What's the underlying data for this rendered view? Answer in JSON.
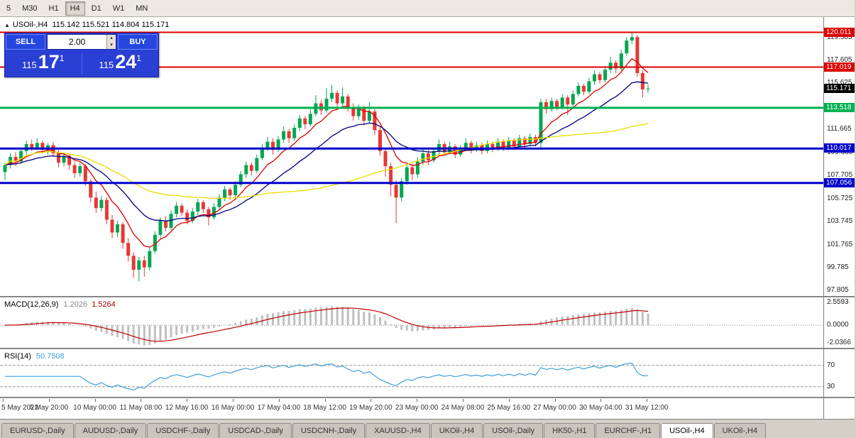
{
  "toolbar": {
    "timeframes": [
      "5",
      "M30",
      "H1",
      "H4",
      "D1",
      "W1",
      "MN"
    ],
    "active_timeframe": "H4"
  },
  "chart": {
    "header": {
      "symbol_tf": "USOil-,H4",
      "ohlc": "115.142 115.521 114.804 115.171"
    },
    "trade_panel": {
      "sell_label": "SELL",
      "buy_label": "BUY",
      "volume": "2.00",
      "sell_price": {
        "prefix": "115",
        "big": "17",
        "sup": "1"
      },
      "buy_price": {
        "prefix": "115",
        "big": "24",
        "sup": "1"
      }
    },
    "price_levels": [
      {
        "label": "120.011",
        "value": 120.011,
        "color": "#dd0000",
        "line_width": 2
      },
      {
        "label": "117.019",
        "value": 117.019,
        "color": "#dd0000",
        "line_width": 2
      },
      {
        "label": "115.171",
        "value": 115.171,
        "color": "#000000",
        "line_width": 0,
        "current_price": true
      },
      {
        "label": "113.518",
        "value": 113.518,
        "color": "#00b050",
        "line_width": 3
      },
      {
        "label": "110.017",
        "value": 110.017,
        "color": "#0000cc",
        "line_width": 3
      },
      {
        "label": "107.056",
        "value": 107.056,
        "color": "#0000cc",
        "line_width": 3
      }
    ],
    "y_axis_labels": [
      "119.585",
      "117.605",
      "115.625",
      "113.645",
      "111.665",
      "109.685",
      "107.705",
      "105.725",
      "103.745",
      "101.765",
      "99.785",
      "97.805"
    ],
    "x_axis_labels": [
      "5 May 2022",
      "6 May 20:00",
      "10 May 00:00",
      "11 May 08:00",
      "12 May 16:00",
      "16 May 00:00",
      "17 May 04:00",
      "18 May 12:00",
      "19 May 20:00",
      "23 May 00:00",
      "24 May 08:00",
      "25 May 16:00",
      "27 May 00:00",
      "30 May 04:00",
      "31 May 12:00"
    ]
  },
  "chart_data": {
    "type": "candlestick",
    "title": "USOil-,H4",
    "y_min": 97.4,
    "y_max": 121.2,
    "up_color": "#00a651",
    "down_color": "#e53935",
    "moving_averages": [
      {
        "type": "ema",
        "period": 8,
        "color": "#dd0000"
      },
      {
        "type": "ema",
        "period": 20,
        "color": "#000080"
      },
      {
        "type": "sma",
        "period": 50,
        "color": "#ecdc00"
      }
    ],
    "candles": [
      [
        108.0,
        108.8,
        107.3,
        108.6
      ],
      [
        108.6,
        109.6,
        108.3,
        109.3
      ],
      [
        109.3,
        109.7,
        108.5,
        108.9
      ],
      [
        108.9,
        110.0,
        108.7,
        109.8
      ],
      [
        109.8,
        110.7,
        109.5,
        110.4
      ],
      [
        110.4,
        110.8,
        109.8,
        110.1
      ],
      [
        110.1,
        110.9,
        109.9,
        110.5
      ],
      [
        110.5,
        110.7,
        109.6,
        109.9
      ],
      [
        109.9,
        110.5,
        109.5,
        110.3
      ],
      [
        110.3,
        110.6,
        109.3,
        109.6
      ],
      [
        109.6,
        109.9,
        108.4,
        108.8
      ],
      [
        108.8,
        109.6,
        108.5,
        109.4
      ],
      [
        109.4,
        109.6,
        108.2,
        108.6
      ],
      [
        108.6,
        108.9,
        107.5,
        107.9
      ],
      [
        107.9,
        108.8,
        107.6,
        108.5
      ],
      [
        108.5,
        108.7,
        106.8,
        107.2
      ],
      [
        107.2,
        107.4,
        105.4,
        105.8
      ],
      [
        105.8,
        106.3,
        104.5,
        104.9
      ],
      [
        104.9,
        105.9,
        104.6,
        105.6
      ],
      [
        105.6,
        105.8,
        103.5,
        103.9
      ],
      [
        103.9,
        104.3,
        102.3,
        102.8
      ],
      [
        102.8,
        103.8,
        102.4,
        103.5
      ],
      [
        103.5,
        103.7,
        101.4,
        101.9
      ],
      [
        101.9,
        102.3,
        100.3,
        100.8
      ],
      [
        100.8,
        101.1,
        98.9,
        99.6
      ],
      [
        99.6,
        100.7,
        98.6,
        100.4
      ],
      [
        100.4,
        100.8,
        99.0,
        99.8
      ],
      [
        99.8,
        101.5,
        99.5,
        101.2
      ],
      [
        101.2,
        102.9,
        101.0,
        102.6
      ],
      [
        102.6,
        104.1,
        102.3,
        103.8
      ],
      [
        103.8,
        104.2,
        102.9,
        103.2
      ],
      [
        103.2,
        104.7,
        103.0,
        104.4
      ],
      [
        104.4,
        105.4,
        104.1,
        105.1
      ],
      [
        105.1,
        105.3,
        104.2,
        104.5
      ],
      [
        104.5,
        104.8,
        103.5,
        103.8
      ],
      [
        103.8,
        104.9,
        103.6,
        104.6
      ],
      [
        104.6,
        105.7,
        104.3,
        105.4
      ],
      [
        105.4,
        105.6,
        104.5,
        104.8
      ],
      [
        104.8,
        105.0,
        103.4,
        104.1
      ],
      [
        104.1,
        105.3,
        103.9,
        105.0
      ],
      [
        105.0,
        106.1,
        104.8,
        105.8
      ],
      [
        105.8,
        106.8,
        105.5,
        106.5
      ],
      [
        106.5,
        106.7,
        105.6,
        106.0
      ],
      [
        106.0,
        107.2,
        105.8,
        106.9
      ],
      [
        106.9,
        108.1,
        106.7,
        107.8
      ],
      [
        107.8,
        108.9,
        107.5,
        108.6
      ],
      [
        108.6,
        108.8,
        107.7,
        108.1
      ],
      [
        108.1,
        109.5,
        107.9,
        109.2
      ],
      [
        109.2,
        110.4,
        109.0,
        110.1
      ],
      [
        110.1,
        111.0,
        109.8,
        110.6
      ],
      [
        110.6,
        110.9,
        109.5,
        109.9
      ],
      [
        109.9,
        111.1,
        109.7,
        110.8
      ],
      [
        110.8,
        111.9,
        110.5,
        111.5
      ],
      [
        111.5,
        111.7,
        110.5,
        110.9
      ],
      [
        110.9,
        112.1,
        110.7,
        111.8
      ],
      [
        111.8,
        112.9,
        111.5,
        112.6
      ],
      [
        112.6,
        112.8,
        111.7,
        112.1
      ],
      [
        112.1,
        113.4,
        111.9,
        113.0
      ],
      [
        113.0,
        114.6,
        112.8,
        113.9
      ],
      [
        113.9,
        114.2,
        112.9,
        113.3
      ],
      [
        113.3,
        115.2,
        113.1,
        114.3
      ],
      [
        114.3,
        115.5,
        114.0,
        114.8
      ],
      [
        114.8,
        115.0,
        113.6,
        113.9
      ],
      [
        113.9,
        115.3,
        113.7,
        114.5
      ],
      [
        114.5,
        114.7,
        113.2,
        113.6
      ],
      [
        113.6,
        113.9,
        112.4,
        112.8
      ],
      [
        112.8,
        113.8,
        112.5,
        113.5
      ],
      [
        113.5,
        113.7,
        112.0,
        112.4
      ],
      [
        112.4,
        114.0,
        112.2,
        113.2
      ],
      [
        113.2,
        113.4,
        111.2,
        111.6
      ],
      [
        111.6,
        111.9,
        109.4,
        109.8
      ],
      [
        109.8,
        110.1,
        107.6,
        108.5
      ],
      [
        108.5,
        108.8,
        105.9,
        106.9
      ],
      [
        106.9,
        107.3,
        103.6,
        105.8
      ],
      [
        105.8,
        107.5,
        105.5,
        107.2
      ],
      [
        107.2,
        108.8,
        106.9,
        108.4
      ],
      [
        108.4,
        108.7,
        107.3,
        107.8
      ],
      [
        107.8,
        109.3,
        107.5,
        108.9
      ],
      [
        108.9,
        110.0,
        108.6,
        109.6
      ],
      [
        109.6,
        109.9,
        108.6,
        109.0
      ],
      [
        109.0,
        110.1,
        108.8,
        109.8
      ],
      [
        109.8,
        110.8,
        109.5,
        110.4
      ],
      [
        110.4,
        110.6,
        109.4,
        109.7
      ],
      [
        109.7,
        110.6,
        109.5,
        110.2
      ],
      [
        110.2,
        110.4,
        109.2,
        109.5
      ],
      [
        109.5,
        110.3,
        109.3,
        110.0
      ],
      [
        110.0,
        110.9,
        109.8,
        110.5
      ],
      [
        110.5,
        110.7,
        109.6,
        109.9
      ],
      [
        109.9,
        110.6,
        109.7,
        110.3
      ],
      [
        110.3,
        110.5,
        109.5,
        109.8
      ],
      [
        109.8,
        110.7,
        109.6,
        110.4
      ],
      [
        110.4,
        110.6,
        109.7,
        110.0
      ],
      [
        110.0,
        110.9,
        109.8,
        110.6
      ],
      [
        110.6,
        110.8,
        109.8,
        110.1
      ],
      [
        110.1,
        111.0,
        109.9,
        110.7
      ],
      [
        110.7,
        110.9,
        109.9,
        110.2
      ],
      [
        110.2,
        111.2,
        110.0,
        110.9
      ],
      [
        110.9,
        111.1,
        110.1,
        110.4
      ],
      [
        110.4,
        111.3,
        110.2,
        111.0
      ],
      [
        111.0,
        111.2,
        110.2,
        110.5
      ],
      [
        110.5,
        114.3,
        109.9,
        114.0
      ],
      [
        114.0,
        114.3,
        113.0,
        113.4
      ],
      [
        113.4,
        114.4,
        113.2,
        114.1
      ],
      [
        114.1,
        114.3,
        113.3,
        113.6
      ],
      [
        113.6,
        114.7,
        113.4,
        114.4
      ],
      [
        114.4,
        114.6,
        112.9,
        113.8
      ],
      [
        113.8,
        115.0,
        113.6,
        114.7
      ],
      [
        114.7,
        115.7,
        114.5,
        115.4
      ],
      [
        115.4,
        115.6,
        114.6,
        114.9
      ],
      [
        114.9,
        116.1,
        114.7,
        115.8
      ],
      [
        115.8,
        116.7,
        115.5,
        116.4
      ],
      [
        116.4,
        116.6,
        115.6,
        115.9
      ],
      [
        115.9,
        117.1,
        115.7,
        116.8
      ],
      [
        116.8,
        117.9,
        116.5,
        117.4
      ],
      [
        117.4,
        117.6,
        116.5,
        116.9
      ],
      [
        116.9,
        118.5,
        116.7,
        118.2
      ],
      [
        118.2,
        119.6,
        118.0,
        119.3
      ],
      [
        119.3,
        120.0,
        119.0,
        119.6
      ],
      [
        119.6,
        119.8,
        116.2,
        116.5
      ],
      [
        116.5,
        116.7,
        114.4,
        115.1
      ],
      [
        115.142,
        115.521,
        114.804,
        115.171
      ]
    ]
  },
  "macd_panel": {
    "title": "MACD(12,26,9)",
    "macd_value": "1.2026",
    "signal_value": "1.5264",
    "axis_labels": [
      "2.5593",
      "0.0000",
      "-2.0366"
    ],
    "fast": 12,
    "slow": 26,
    "signal": 9,
    "histogram_color": "#c0c0c0",
    "signal_color": "#c00000",
    "y_min": -2.25,
    "y_max": 2.75
  },
  "rsi_panel": {
    "title": "RSI(14)",
    "value": "50.7508",
    "period": 14,
    "levels": [
      70,
      30
    ],
    "level_labels": [
      "70",
      "30"
    ],
    "line_color": "#3e9fd8",
    "y_min": 15,
    "y_max": 95
  },
  "tabs": {
    "items": [
      "EURUSD-,Daily",
      "AUDUSD-,Daily",
      "USDCHF-,Daily",
      "USDCAD-,Daily",
      "USDCNH-,Daily",
      "XAUUSD-,H4",
      "UKOil-,H4",
      "USOil-,Daily",
      "HK50-,H1",
      "EURCHF-,H1",
      "USOil-,H4",
      "UKOil-,H4"
    ],
    "active_index": 10
  }
}
